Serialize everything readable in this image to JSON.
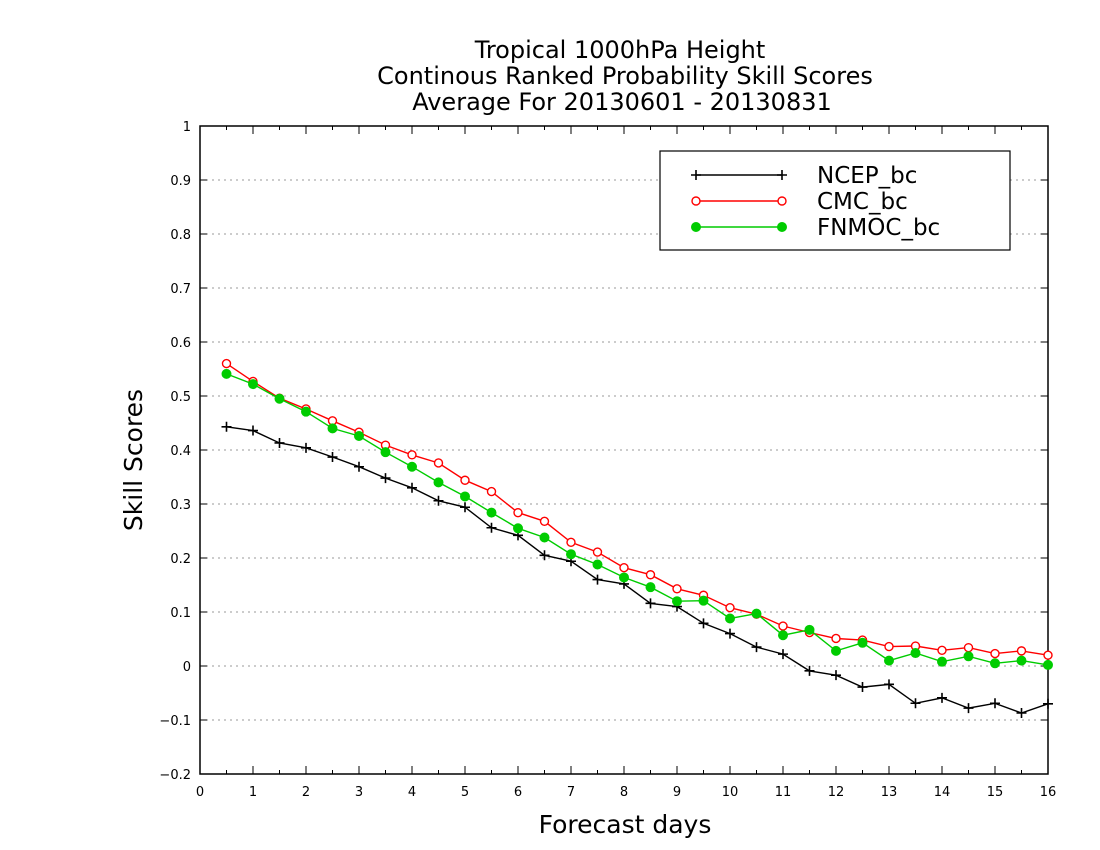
{
  "chart_data": {
    "type": "line",
    "title": [
      "Tropical 1000hPa Height",
      "Continous Ranked Probability Skill Scores",
      "Average For 20130601 - 20130831"
    ],
    "xlabel": "Forecast days",
    "ylabel": "Skill Scores",
    "xlim": [
      0,
      16
    ],
    "ylim": [
      -0.2,
      1
    ],
    "xticks": [
      0,
      1,
      2,
      3,
      4,
      5,
      6,
      7,
      8,
      9,
      10,
      11,
      12,
      13,
      14,
      15,
      16
    ],
    "xtick_labels": [
      "0",
      "1",
      "2",
      "3",
      "4",
      "5",
      "6",
      "7",
      "8",
      "9",
      "10",
      "11",
      "12",
      "13",
      "14",
      "15",
      "16"
    ],
    "yticks": [
      -0.2,
      -0.1,
      0,
      0.1,
      0.2,
      0.3,
      0.4,
      0.5,
      0.6,
      0.7,
      0.8,
      0.9,
      1
    ],
    "ytick_labels": [
      "−0.2",
      "−0.1",
      "0",
      "0.1",
      "0.2",
      "0.3",
      "0.4",
      "0.5",
      "0.6",
      "0.7",
      "0.8",
      "0.9",
      "1"
    ],
    "grid": "horizontal dotted",
    "legend_position": "top-right",
    "x": [
      0.5,
      1,
      1.5,
      2,
      2.5,
      3,
      3.5,
      4,
      4.5,
      5,
      5.5,
      6,
      6.5,
      7,
      7.5,
      8,
      8.5,
      9,
      9.5,
      10,
      10.5,
      11,
      11.5,
      12,
      12.5,
      13,
      13.5,
      14,
      14.5,
      15,
      15.5,
      16
    ],
    "series": [
      {
        "name": "NCEP_bc",
        "color": "#000000",
        "marker": "plus",
        "values": [
          0.443,
          0.436,
          0.413,
          0.404,
          0.387,
          0.369,
          0.348,
          0.33,
          0.306,
          0.294,
          0.256,
          0.242,
          0.205,
          0.194,
          0.16,
          0.152,
          0.116,
          0.11,
          0.079,
          0.06,
          0.035,
          0.022,
          -0.009,
          -0.017,
          -0.039,
          -0.034,
          -0.069,
          -0.059,
          -0.078,
          -0.069,
          -0.087,
          -0.07
        ]
      },
      {
        "name": "CMC_bc",
        "color": "#ff0000",
        "marker": "open-circle",
        "values": [
          0.56,
          0.527,
          0.496,
          0.476,
          0.454,
          0.433,
          0.409,
          0.391,
          0.376,
          0.344,
          0.323,
          0.284,
          0.268,
          0.229,
          0.211,
          0.182,
          0.169,
          0.143,
          0.131,
          0.108,
          0.096,
          0.074,
          0.062,
          0.051,
          0.048,
          0.036,
          0.037,
          0.029,
          0.034,
          0.023,
          0.028,
          0.02
        ]
      },
      {
        "name": "FNMOC_bc",
        "color": "#00cc00",
        "marker": "filled-circle",
        "values": [
          0.541,
          0.522,
          0.495,
          0.471,
          0.44,
          0.426,
          0.396,
          0.369,
          0.34,
          0.314,
          0.284,
          0.255,
          0.238,
          0.207,
          0.188,
          0.164,
          0.146,
          0.12,
          0.121,
          0.088,
          0.097,
          0.057,
          0.067,
          0.028,
          0.043,
          0.01,
          0.024,
          0.008,
          0.018,
          0.005,
          0.01,
          0.002
        ]
      }
    ]
  }
}
